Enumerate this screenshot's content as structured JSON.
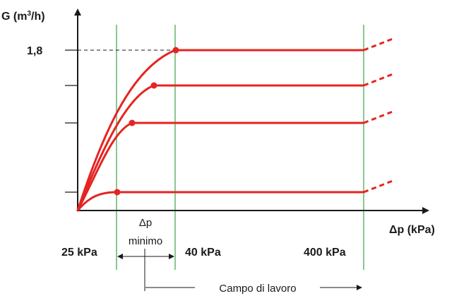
{
  "chart_data": {
    "type": "line",
    "ylabel_main": "G (m",
    "ylabel_sup": "3",
    "ylabel_end": "/h)",
    "xlabel": "Δp (kPa)",
    "ytick_label": "1,8",
    "x_ticks": [
      {
        "label": "25 kPa"
      },
      {
        "label": "40 kPa"
      },
      {
        "label": "400 kPa"
      }
    ],
    "annotations": {
      "dp_min_line1": "Δp",
      "dp_min_line2": "minimo",
      "work_range": "Campo di lavoro"
    },
    "colors": {
      "curve": "#e52421",
      "grid": "#3aa34a",
      "axis": "#1a1a1a"
    }
  }
}
